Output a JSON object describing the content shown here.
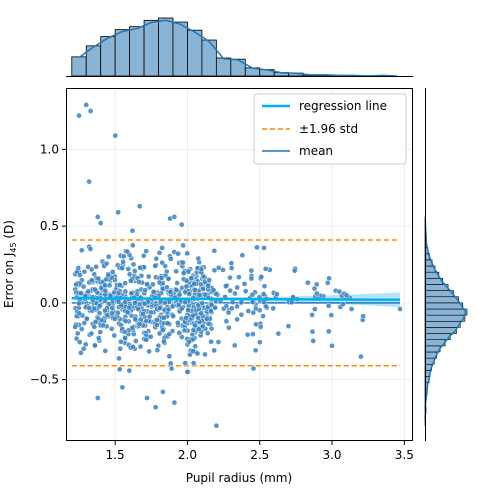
{
  "chart_data": {
    "type": "scatter",
    "title": "",
    "xlabel": "Pupil radius (mm)",
    "ylabel_parts": {
      "pre": "Error on J",
      "sub": "45",
      "post": " (D)"
    },
    "xlim": [
      1.16,
      3.56
    ],
    "ylim": [
      -0.9,
      1.4
    ],
    "xticks": [
      1.5,
      2.0,
      2.5,
      3.0,
      3.5
    ],
    "xtick_labels": [
      "1.5",
      "2.0",
      "2.5",
      "3.0",
      "3.5"
    ],
    "yticks": [
      -0.5,
      0.0,
      0.5,
      1.0
    ],
    "ytick_labels": [
      "−0.5",
      "0.0",
      "0.5",
      "1.0"
    ],
    "grid": true,
    "colors": {
      "points": "#3a83c0",
      "regression": "#00b0f0",
      "ci_band": "#a6dcf3",
      "std_lines": "#ff8c00",
      "hist_fill": "#8ab4d6",
      "kde": "#1f77b4"
    },
    "mean": 0.0,
    "upper_loa": 0.41,
    "lower_loa": -0.41,
    "regression": {
      "x0": 1.2,
      "y0": 0.03,
      "x1": 3.47,
      "y1": 0.02
    },
    "legend": {
      "position": "upper right",
      "entries": [
        {
          "label": "regression line",
          "style": "regression"
        },
        {
          "label": "±1.96 std",
          "style": "std"
        },
        {
          "label": "mean",
          "style": "mean"
        }
      ]
    },
    "outliers": [
      {
        "x": 1.25,
        "y": 1.22
      },
      {
        "x": 1.3,
        "y": 1.29
      },
      {
        "x": 1.33,
        "y": 1.25
      },
      {
        "x": 1.5,
        "y": 1.09
      },
      {
        "x": 1.32,
        "y": 0.79
      },
      {
        "x": 1.38,
        "y": 0.56
      },
      {
        "x": 1.4,
        "y": 0.52
      },
      {
        "x": 1.52,
        "y": 0.59
      },
      {
        "x": 1.62,
        "y": 0.47
      },
      {
        "x": 1.88,
        "y": 0.55
      },
      {
        "x": 1.91,
        "y": 0.56
      },
      {
        "x": 1.96,
        "y": 0.51
      },
      {
        "x": 1.38,
        "y": -0.62
      },
      {
        "x": 1.55,
        "y": -0.55
      },
      {
        "x": 1.72,
        "y": -0.62
      },
      {
        "x": 1.83,
        "y": -0.58
      },
      {
        "x": 1.91,
        "y": -0.65
      },
      {
        "x": 2.0,
        "y": -0.45
      },
      {
        "x": 2.2,
        "y": -0.8
      },
      {
        "x": 1.78,
        "y": -0.68
      },
      {
        "x": 3.0,
        "y": -0.28
      },
      {
        "x": 3.2,
        "y": -0.35
      },
      {
        "x": 3.47,
        "y": -0.04
      },
      {
        "x": 2.98,
        "y": 0.16
      },
      {
        "x": 3.1,
        "y": 0.05
      },
      {
        "x": 2.38,
        "y": 0.31
      },
      {
        "x": 1.43,
        "y": -0.05
      },
      {
        "x": 1.67,
        "y": 0.63
      }
    ],
    "x_hist": {
      "bin_start": 1.2,
      "bin_width": 0.1,
      "density": [
        0.33,
        0.52,
        0.68,
        0.8,
        0.85,
        0.96,
        1.0,
        0.93,
        0.79,
        0.62,
        0.31,
        0.29,
        0.14,
        0.11,
        0.06,
        0.05,
        0.02,
        0.02,
        0.01,
        0.01,
        0.0,
        0.01,
        0.0
      ]
    },
    "y_hist": {
      "bin_start": -0.8,
      "bin_width": 0.04,
      "density": [
        0.01,
        0.0,
        0.02,
        0.01,
        0.03,
        0.05,
        0.06,
        0.1,
        0.12,
        0.16,
        0.22,
        0.28,
        0.36,
        0.48,
        0.6,
        0.75,
        0.84,
        0.95,
        1.0,
        0.9,
        0.8,
        0.68,
        0.55,
        0.42,
        0.33,
        0.24,
        0.17,
        0.11,
        0.07,
        0.04,
        0.03,
        0.02,
        0.01,
        0.01
      ]
    }
  }
}
